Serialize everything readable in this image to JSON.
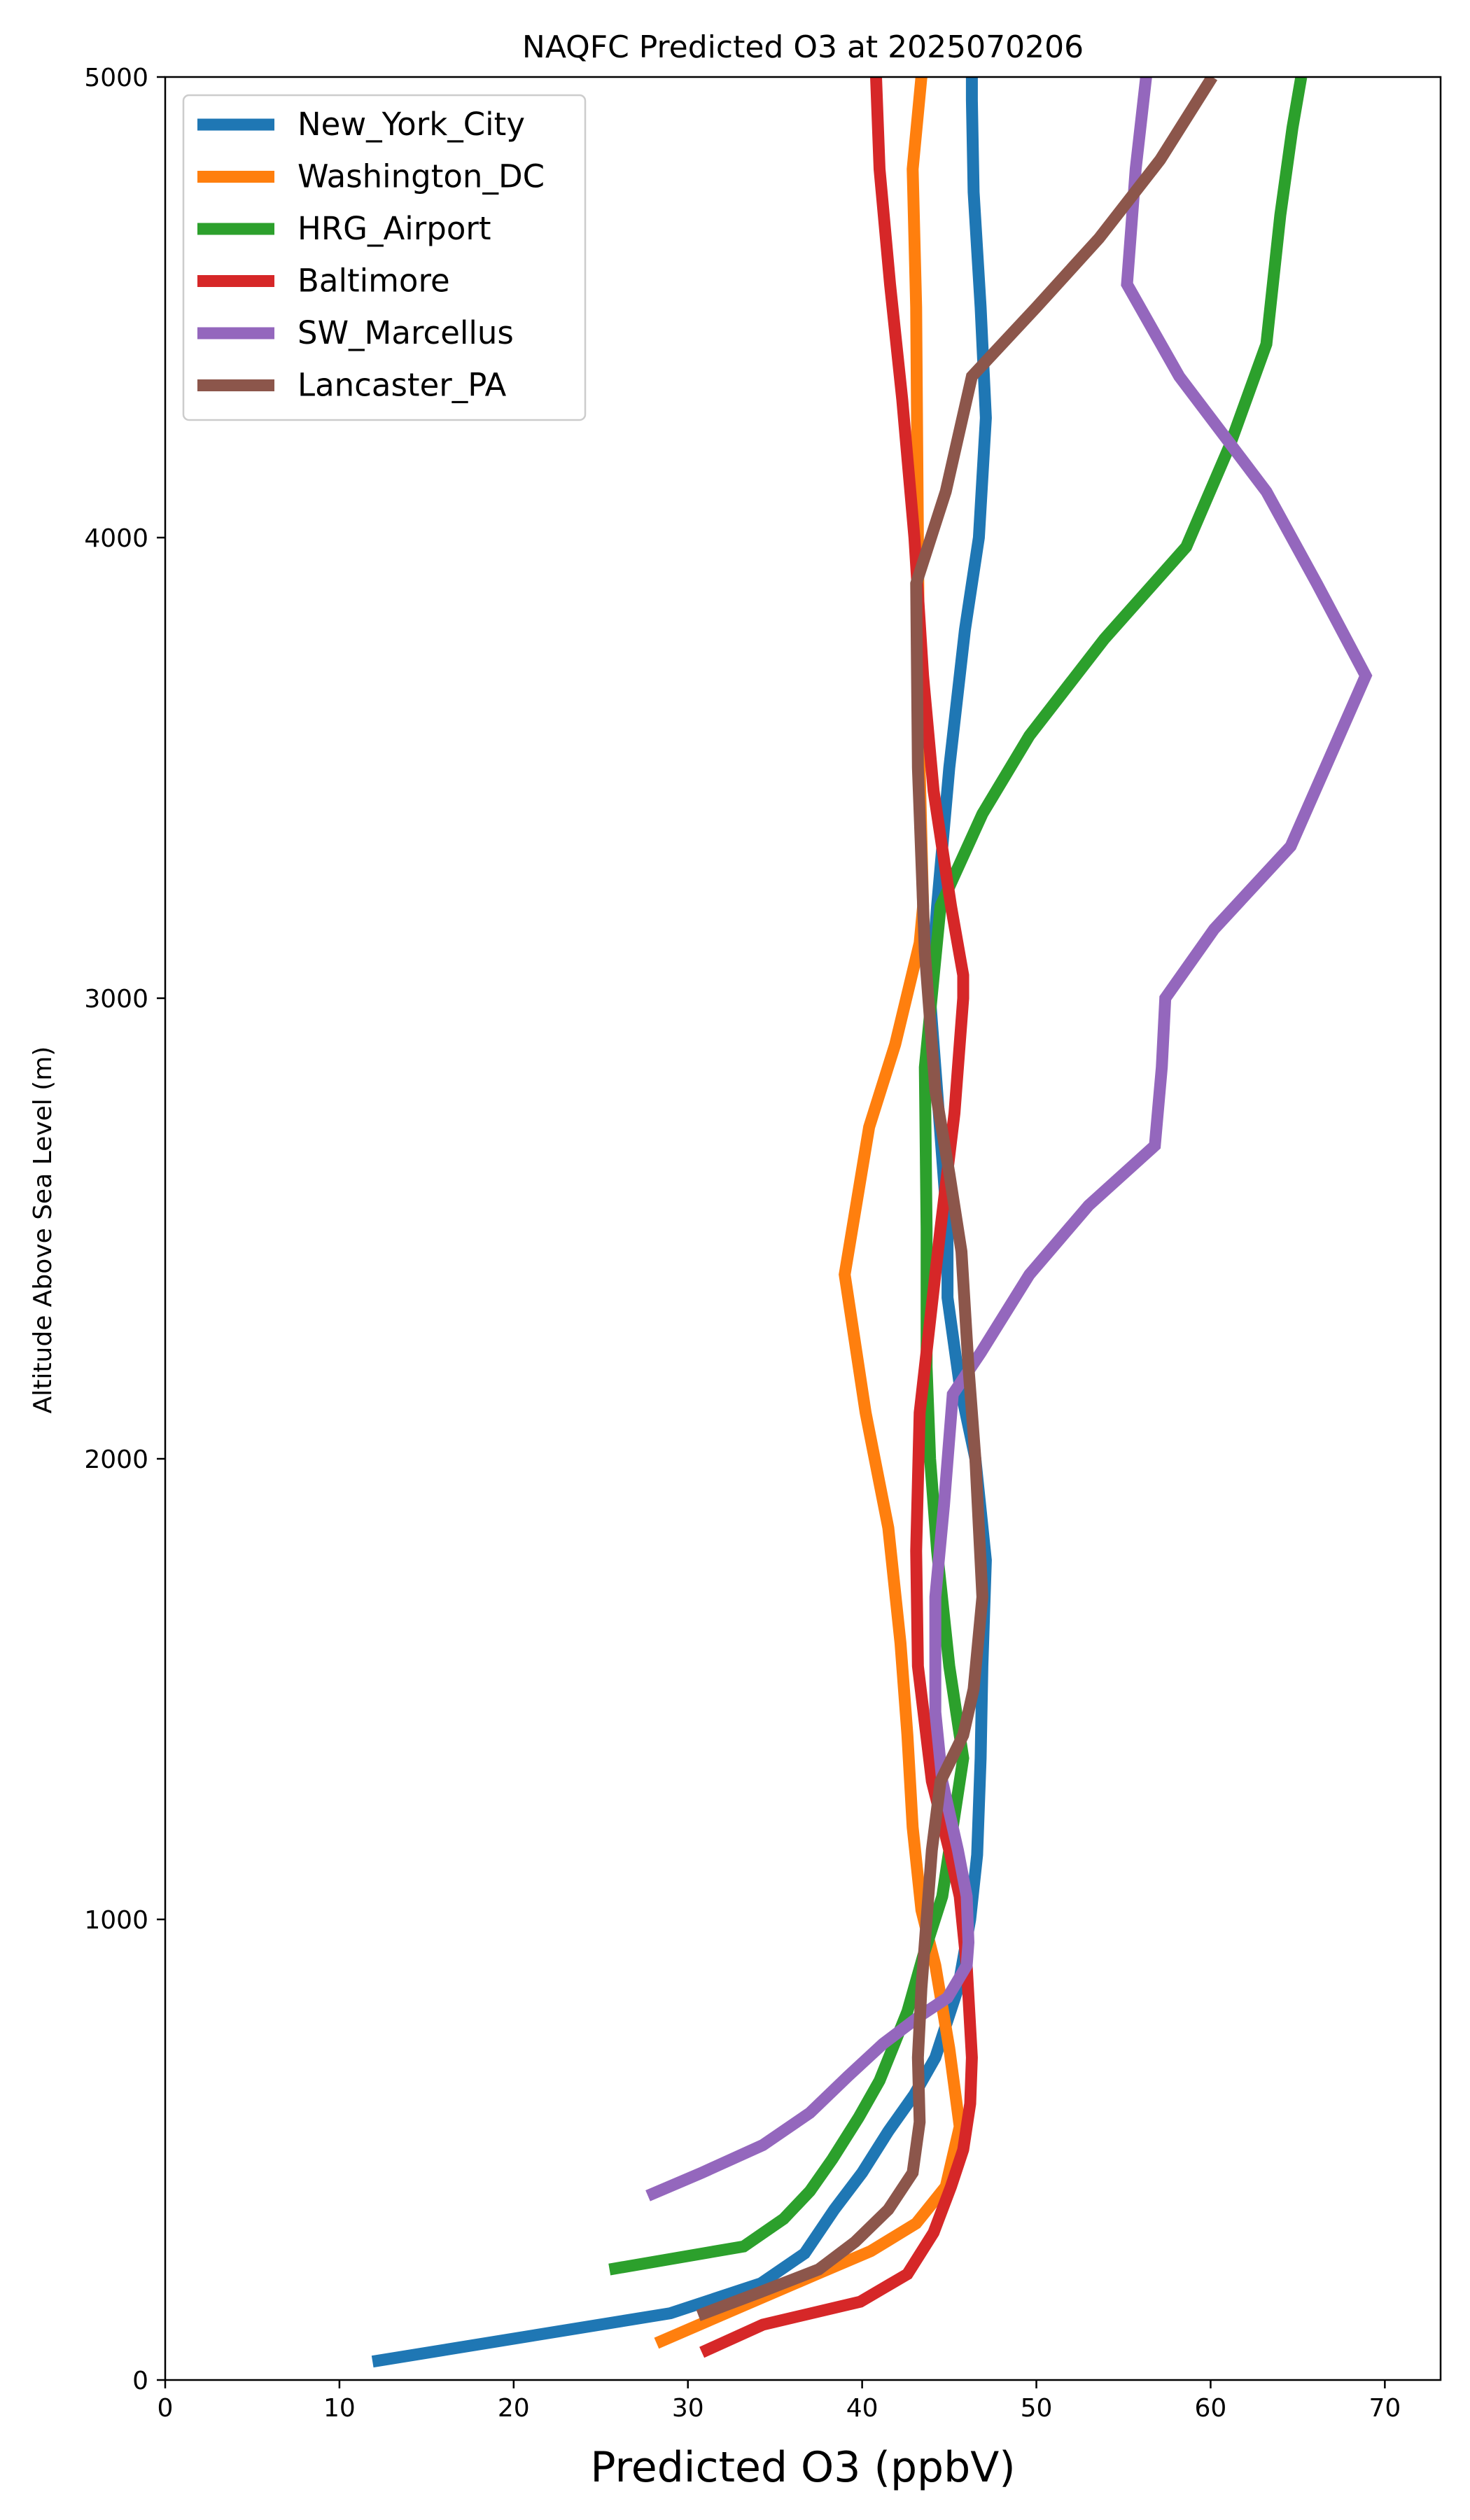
{
  "chart_data": {
    "type": "line",
    "title": "NAQFC Predicted O3 at 2025070206",
    "xlabel": "Predicted O3 (ppbV)",
    "ylabel": "Altitude Above Sea Level (m)",
    "xlim": [
      0,
      73.2
    ],
    "ylim": [
      0,
      5000
    ],
    "x_ticks": [
      0,
      10,
      20,
      30,
      40,
      50,
      60,
      70
    ],
    "y_ticks": [
      0,
      1000,
      2000,
      3000,
      4000,
      5000
    ],
    "grid": false,
    "legend_position": "top-left",
    "series": [
      {
        "name": "New_York_City",
        "color": "#1f77b4",
        "points": [
          [
            11.9,
            40
          ],
          [
            29.0,
            145
          ],
          [
            34.2,
            210
          ],
          [
            36.7,
            275
          ],
          [
            38.4,
            370
          ],
          [
            40.0,
            450
          ],
          [
            41.5,
            540
          ],
          [
            43.0,
            620
          ],
          [
            44.2,
            700
          ],
          [
            45.5,
            850
          ],
          [
            46.2,
            1000
          ],
          [
            46.6,
            1140
          ],
          [
            46.8,
            1350
          ],
          [
            46.9,
            1550
          ],
          [
            47.1,
            1780
          ],
          [
            46.5,
            2000
          ],
          [
            45.6,
            2160
          ],
          [
            44.9,
            2350
          ],
          [
            44.9,
            2500
          ],
          [
            44.3,
            2800
          ],
          [
            43.9,
            3000
          ],
          [
            44.3,
            3200
          ],
          [
            45.0,
            3500
          ],
          [
            45.9,
            3800
          ],
          [
            46.7,
            4000
          ],
          [
            47.1,
            4260
          ],
          [
            46.8,
            4500
          ],
          [
            46.4,
            4750
          ],
          [
            46.3,
            4950
          ],
          [
            46.3,
            5000
          ]
        ]
      },
      {
        "name": "Washington_DC",
        "color": "#ff7f0e",
        "points": [
          [
            28.2,
            80
          ],
          [
            33.1,
            160
          ],
          [
            37.4,
            230
          ],
          [
            40.5,
            280
          ],
          [
            43.1,
            340
          ],
          [
            44.8,
            420
          ],
          [
            45.6,
            550
          ],
          [
            45.0,
            720
          ],
          [
            44.2,
            900
          ],
          [
            43.4,
            1020
          ],
          [
            42.9,
            1200
          ],
          [
            42.6,
            1400
          ],
          [
            42.2,
            1600
          ],
          [
            41.5,
            1850
          ],
          [
            40.2,
            2100
          ],
          [
            39.0,
            2400
          ],
          [
            40.4,
            2720
          ],
          [
            41.9,
            2900
          ],
          [
            43.3,
            3120
          ],
          [
            43.5,
            3200
          ],
          [
            43.3,
            3500
          ],
          [
            43.2,
            4000
          ],
          [
            43.1,
            4500
          ],
          [
            42.9,
            4800
          ],
          [
            43.4,
            5000
          ]
        ]
      },
      {
        "name": "HRG_Airport",
        "color": "#2ca02c",
        "points": [
          [
            25.5,
            240
          ],
          [
            33.2,
            290
          ],
          [
            35.5,
            350
          ],
          [
            37.0,
            410
          ],
          [
            38.3,
            480
          ],
          [
            39.8,
            570
          ],
          [
            41.0,
            650
          ],
          [
            42.6,
            800
          ],
          [
            43.5,
            920
          ],
          [
            44.6,
            1050
          ],
          [
            45.8,
            1350
          ],
          [
            45.0,
            1550
          ],
          [
            44.3,
            1800
          ],
          [
            43.9,
            2000
          ],
          [
            43.7,
            2200
          ],
          [
            43.7,
            2500
          ],
          [
            43.6,
            2850
          ],
          [
            44.5,
            3200
          ],
          [
            46.9,
            3400
          ],
          [
            49.6,
            3570
          ],
          [
            53.9,
            3780
          ],
          [
            58.6,
            3980
          ],
          [
            61.1,
            4200
          ],
          [
            63.2,
            4420
          ],
          [
            64.0,
            4700
          ],
          [
            64.7,
            4890
          ],
          [
            65.2,
            5000
          ]
        ]
      },
      {
        "name": "Baltimore",
        "color": "#d62728",
        "points": [
          [
            30.8,
            60
          ],
          [
            34.3,
            120
          ],
          [
            39.9,
            170
          ],
          [
            42.6,
            230
          ],
          [
            44.1,
            320
          ],
          [
            45.1,
            420
          ],
          [
            45.8,
            500
          ],
          [
            46.2,
            600
          ],
          [
            46.3,
            700
          ],
          [
            46.0,
            900
          ],
          [
            45.6,
            1050
          ],
          [
            45.0,
            1150
          ],
          [
            44.0,
            1300
          ],
          [
            43.2,
            1550
          ],
          [
            43.1,
            1800
          ],
          [
            43.3,
            2100
          ],
          [
            43.9,
            2300
          ],
          [
            44.5,
            2500
          ],
          [
            45.3,
            2750
          ],
          [
            45.8,
            3000
          ],
          [
            45.8,
            3050
          ],
          [
            45.1,
            3200
          ],
          [
            44.1,
            3450
          ],
          [
            43.5,
            3700
          ],
          [
            43.0,
            4000
          ],
          [
            42.3,
            4300
          ],
          [
            41.6,
            4550
          ],
          [
            41.0,
            4800
          ],
          [
            40.8,
            5000
          ]
        ]
      },
      {
        "name": "SW_Marcellus",
        "color": "#9467bd",
        "points": [
          [
            27.7,
            400
          ],
          [
            30.8,
            450
          ],
          [
            34.3,
            510
          ],
          [
            37.0,
            580
          ],
          [
            39.2,
            660
          ],
          [
            41.2,
            730
          ],
          [
            43.3,
            790
          ],
          [
            44.9,
            830
          ],
          [
            46.0,
            900
          ],
          [
            46.1,
            950
          ],
          [
            46.0,
            1050
          ],
          [
            45.5,
            1150
          ],
          [
            44.6,
            1300
          ],
          [
            44.2,
            1450
          ],
          [
            44.2,
            1700
          ],
          [
            44.7,
            1900
          ],
          [
            45.2,
            2140
          ],
          [
            46.8,
            2230
          ],
          [
            49.6,
            2400
          ],
          [
            53.0,
            2550
          ],
          [
            56.8,
            2680
          ],
          [
            57.2,
            2850
          ],
          [
            57.4,
            3000
          ],
          [
            60.2,
            3150
          ],
          [
            64.6,
            3330
          ],
          [
            68.9,
            3700
          ],
          [
            66.1,
            3900
          ],
          [
            63.2,
            4100
          ],
          [
            58.2,
            4350
          ],
          [
            55.2,
            4550
          ],
          [
            55.7,
            4800
          ],
          [
            56.3,
            5000
          ]
        ]
      },
      {
        "name": "Lancaster_PA",
        "color": "#8c564b",
        "points": [
          [
            30.6,
            140
          ],
          [
            34.1,
            190
          ],
          [
            37.5,
            240
          ],
          [
            39.6,
            300
          ],
          [
            41.5,
            370
          ],
          [
            42.9,
            450
          ],
          [
            43.3,
            560
          ],
          [
            43.2,
            700
          ],
          [
            43.4,
            850
          ],
          [
            43.7,
            1000
          ],
          [
            44.0,
            1150
          ],
          [
            44.5,
            1300
          ],
          [
            45.8,
            1400
          ],
          [
            46.4,
            1500
          ],
          [
            46.9,
            1700
          ],
          [
            46.5,
            2000
          ],
          [
            46.1,
            2200
          ],
          [
            45.7,
            2450
          ],
          [
            45.0,
            2620
          ],
          [
            44.2,
            2800
          ],
          [
            43.6,
            3100
          ],
          [
            43.2,
            3500
          ],
          [
            43.1,
            3900
          ],
          [
            44.8,
            4100
          ],
          [
            46.3,
            4350
          ],
          [
            50.0,
            4500
          ],
          [
            53.6,
            4650
          ],
          [
            57.1,
            4820
          ],
          [
            60.1,
            5000
          ]
        ]
      }
    ]
  }
}
